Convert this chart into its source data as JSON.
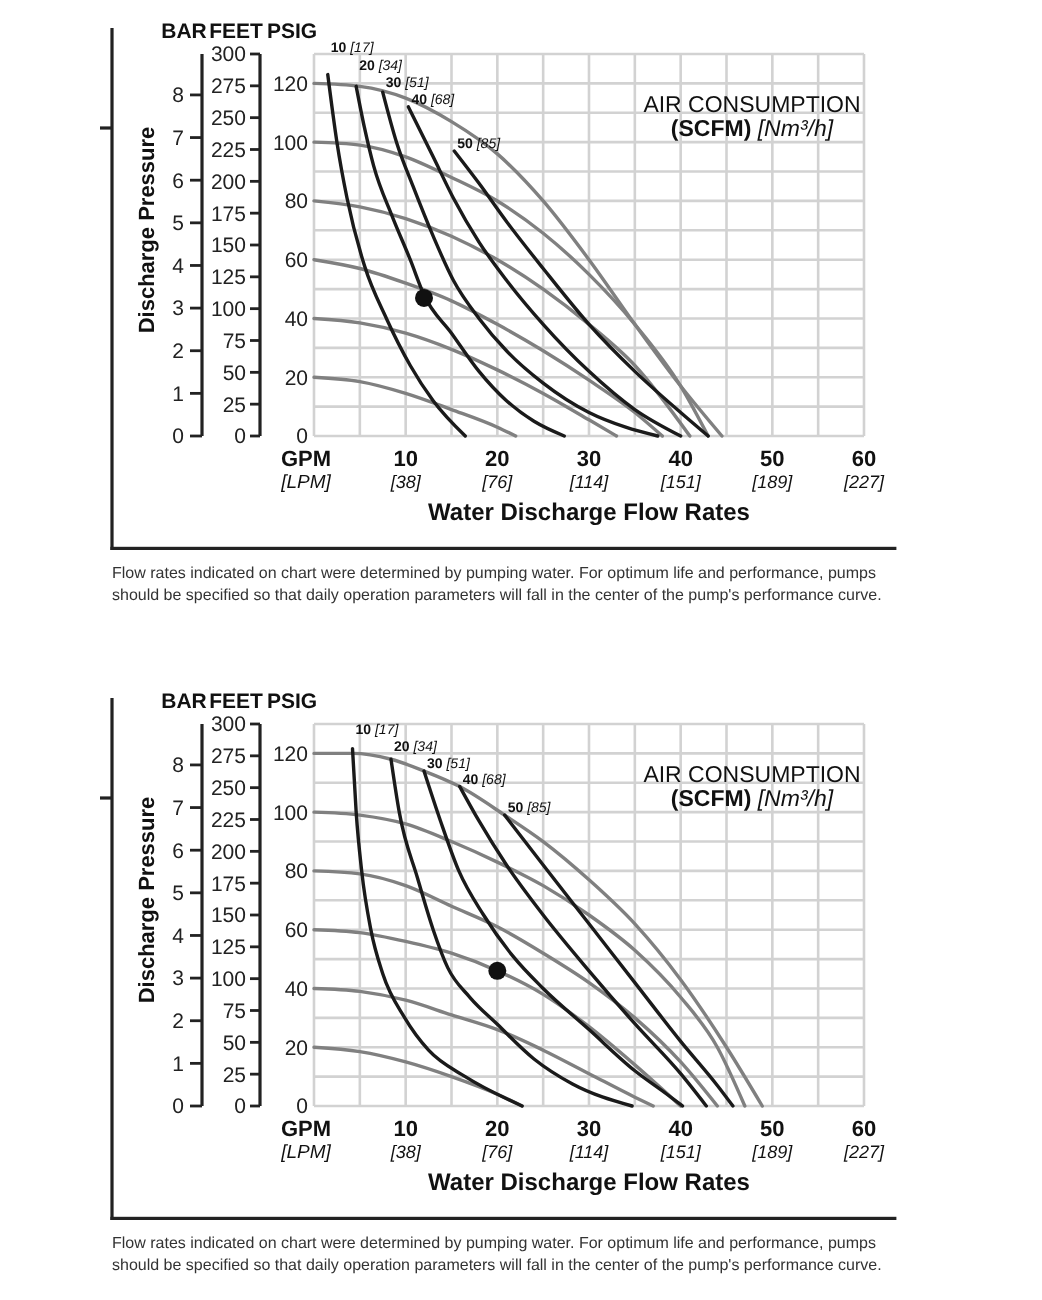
{
  "chart_data": [
    {
      "type": "line",
      "xlabel": "GPM",
      "x2label": "[LPM]",
      "ylabel": "PSIG",
      "y2label": "FEET",
      "y3label": "BAR",
      "annotations": [
        "Discharge Pressure",
        "Water Discharge Flow Rates",
        "AIR CONSUMPTION",
        "(SCFM) [Nm³/h]",
        "Flow rates indicated on chart were determined by pumping water. For optimum life and performance, pumps should be specified so that daily operation parameters will fall in the center of the pump's performance curve."
      ],
      "xlim": [
        0,
        60
      ],
      "xticks": [
        {
          "value": 0,
          "label": null
        },
        {
          "value": 5,
          "label": null
        },
        10,
        {
          "value": 15,
          "label": null
        },
        20,
        {
          "value": 25,
          "label": null
        },
        30,
        {
          "value": 35,
          "label": null
        },
        40,
        {
          "value": 45,
          "label": null
        },
        50,
        {
          "value": 55,
          "label": null
        },
        60
      ],
      "x2lim": [
        0,
        227.12
      ],
      "x2ticks": [
        {
          "value": 37.85,
          "label": "[38]"
        },
        {
          "value": 75.71,
          "label": "[76]"
        },
        {
          "value": 113.56,
          "label": "[114]"
        },
        {
          "value": 151.42,
          "label": "[151]"
        },
        {
          "value": 189.27,
          "label": "[189]"
        },
        {
          "value": 227.12,
          "label": "[227]"
        }
      ],
      "ylim": [
        0,
        130
      ],
      "yticks": [
        0,
        {
          "value": 10,
          "label": null
        },
        20,
        {
          "value": 30,
          "label": null
        },
        40,
        {
          "value": 50,
          "label": null
        },
        60,
        {
          "value": 70,
          "label": null
        },
        80,
        {
          "value": 90,
          "label": null
        },
        100,
        {
          "value": 110,
          "label": null
        },
        120,
        {
          "value": 130,
          "label": null
        }
      ],
      "y2lim": [
        0,
        300
      ],
      "y2ticks": [
        0,
        25,
        50,
        75,
        100,
        125,
        150,
        175,
        200,
        225,
        250,
        275,
        300
      ],
      "y3lim": [
        0,
        8.96
      ],
      "y3ticks": [
        0,
        1,
        2,
        3,
        4,
        5,
        6,
        7,
        8
      ],
      "grid": true,
      "series": [
        {
          "color": "#808080",
          "x": [
            0,
            5,
            10,
            15,
            20,
            25,
            30,
            35,
            40,
            44.5
          ],
          "values": [
            120,
            119,
            115,
            107,
            96,
            80,
            60,
            38,
            17,
            0
          ]
        },
        {
          "color": "#808080",
          "x": [
            0,
            5,
            10,
            15,
            20,
            25,
            30,
            35,
            40,
            43
          ],
          "values": [
            100,
            99,
            95,
            88,
            80,
            69,
            55,
            38,
            17,
            0
          ]
        },
        {
          "color": "#808080",
          "x": [
            0,
            5,
            10,
            15,
            20,
            25,
            30,
            35,
            41
          ],
          "values": [
            80,
            78,
            74,
            68,
            60,
            50,
            38,
            24,
            0
          ]
        },
        {
          "color": "#808080",
          "x": [
            0,
            5,
            10,
            15,
            20,
            25,
            30,
            35,
            38
          ],
          "values": [
            60,
            57,
            52,
            46,
            38,
            29,
            19,
            8,
            0
          ]
        },
        {
          "color": "#808080",
          "x": [
            0,
            5,
            10,
            15,
            20,
            25,
            30,
            33
          ],
          "values": [
            40,
            38.5,
            35,
            29.5,
            22.5,
            14.5,
            5.5,
            0
          ]
        },
        {
          "color": "#808080",
          "x": [
            0,
            5,
            10,
            15,
            20,
            22
          ],
          "values": [
            20,
            18.5,
            14.5,
            9,
            3,
            0
          ]
        },
        {
          "name": "10 [17]",
          "color": "#1a1a1a",
          "x": [
            1.5,
            2.5,
            3.6,
            5.5,
            7.9,
            10.5,
            13,
            16.5
          ],
          "values": [
            123,
            100,
            81,
            58,
            40,
            24,
            12,
            0
          ]
        },
        {
          "name": "20 [34]",
          "color": "#1a1a1a",
          "x": [
            4.6,
            5.5,
            6.5,
            8.5,
            10.5,
            12,
            15,
            18,
            21,
            24,
            27.3
          ],
          "values": [
            119,
            105,
            92,
            75,
            60,
            48,
            35,
            22,
            12,
            5,
            0
          ]
        },
        {
          "name": "30 [51]",
          "color": "#1a1a1a",
          "x": [
            7.5,
            9,
            10.8,
            13,
            15.2,
            18,
            21,
            25,
            30,
            34,
            37.5
          ],
          "values": [
            117,
            100,
            85,
            68,
            53,
            40,
            29,
            18,
            8,
            3,
            0
          ]
        },
        {
          "name": "40 [68]",
          "color": "#1a1a1a",
          "x": [
            10.3,
            13,
            15.2,
            18,
            21,
            25,
            30,
            35,
            40
          ],
          "values": [
            112,
            95,
            81,
            66,
            53,
            38,
            22,
            9,
            0
          ]
        },
        {
          "name": "50 [85]",
          "color": "#1a1a1a",
          "x": [
            15.3,
            18,
            21,
            25,
            30,
            35,
            40,
            43
          ],
          "values": [
            97,
            86,
            73,
            57,
            38,
            22,
            8,
            0
          ]
        },
        {
          "type": "scatter",
          "marker": "circle",
          "color": "#111111",
          "x": [
            12
          ],
          "values": [
            47
          ]
        }
      ]
    },
    {
      "type": "line",
      "xlabel": "GPM",
      "x2label": "[LPM]",
      "ylabel": "PSIG",
      "y2label": "FEET",
      "y3label": "BAR",
      "annotations": [
        "Discharge Pressure",
        "Water Discharge Flow Rates",
        "AIR CONSUMPTION",
        "(SCFM) [Nm³/h]",
        "Flow rates indicated on chart were determined by pumping water. For optimum life and performance, pumps should be specified so that daily operation parameters will fall in the center of the pump's performance curve."
      ],
      "xlim": [
        0,
        60
      ],
      "xticks": [
        {
          "value": 0,
          "label": null
        },
        {
          "value": 5,
          "label": null
        },
        10,
        {
          "value": 15,
          "label": null
        },
        20,
        {
          "value": 25,
          "label": null
        },
        30,
        {
          "value": 35,
          "label": null
        },
        40,
        {
          "value": 45,
          "label": null
        },
        50,
        {
          "value": 55,
          "label": null
        },
        60
      ],
      "x2lim": [
        0,
        227.12
      ],
      "x2ticks": [
        {
          "value": 37.85,
          "label": "[38]"
        },
        {
          "value": 75.71,
          "label": "[76]"
        },
        {
          "value": 113.56,
          "label": "[114]"
        },
        {
          "value": 151.42,
          "label": "[151]"
        },
        {
          "value": 189.27,
          "label": "[189]"
        },
        {
          "value": 227.12,
          "label": "[227]"
        }
      ],
      "ylim": [
        0,
        130
      ],
      "yticks": [
        0,
        {
          "value": 10,
          "label": null
        },
        20,
        {
          "value": 30,
          "label": null
        },
        40,
        {
          "value": 50,
          "label": null
        },
        60,
        {
          "value": 70,
          "label": null
        },
        80,
        {
          "value": 90,
          "label": null
        },
        100,
        {
          "value": 110,
          "label": null
        },
        120,
        {
          "value": 130,
          "label": null
        }
      ],
      "y2lim": [
        0,
        300
      ],
      "y2ticks": [
        0,
        25,
        50,
        75,
        100,
        125,
        150,
        175,
        200,
        225,
        250,
        275,
        300
      ],
      "y3lim": [
        0,
        8.96
      ],
      "y3ticks": [
        0,
        1,
        2,
        3,
        4,
        5,
        6,
        7,
        8
      ],
      "grid": true,
      "series": [
        {
          "color": "#808080",
          "x": [
            0,
            4.2,
            8.4,
            12,
            15.9,
            20.8,
            25,
            30,
            35,
            40,
            45,
            48.9
          ],
          "values": [
            120,
            120,
            118,
            114,
            108.7,
            99,
            90,
            77,
            62,
            43,
            20,
            0
          ]
        },
        {
          "color": "#808080",
          "x": [
            0,
            5,
            10,
            15,
            20,
            25,
            30,
            35,
            40,
            44,
            47
          ],
          "values": [
            100,
            99,
            96,
            90,
            83,
            75,
            65,
            53,
            37,
            20,
            0
          ]
        },
        {
          "color": "#808080",
          "x": [
            0,
            5,
            10,
            15,
            20,
            25,
            30,
            35,
            40,
            44
          ],
          "values": [
            80,
            79,
            75,
            68,
            61,
            52,
            42,
            30,
            15,
            0
          ]
        },
        {
          "color": "#808080",
          "x": [
            0,
            5,
            10,
            15,
            20,
            25,
            30,
            35,
            40
          ],
          "values": [
            60,
            59,
            56,
            52,
            46,
            38,
            27,
            14,
            0
          ]
        },
        {
          "color": "#808080",
          "x": [
            0,
            5,
            10,
            15,
            20,
            25,
            30,
            35,
            37
          ],
          "values": [
            40,
            39,
            36,
            31,
            26,
            19,
            11,
            3,
            0
          ]
        },
        {
          "color": "#808080",
          "x": [
            0,
            5,
            10,
            15,
            20,
            22.7
          ],
          "values": [
            20,
            18.5,
            15,
            10,
            4,
            0
          ]
        },
        {
          "name": "10 [17]",
          "color": "#1a1a1a",
          "x": [
            4.2,
            4.6,
            5.2,
            6.2,
            7.5,
            9.9,
            12.5,
            16.5,
            22.7
          ],
          "values": [
            121.6,
            100,
            80,
            60,
            45,
            30,
            19,
            10,
            0
          ]
        },
        {
          "name": "20 [34]",
          "color": "#1a1a1a",
          "x": [
            8.4,
            9.3,
            11.3,
            13,
            14.6,
            17,
            20,
            24,
            28.2,
            34.7
          ],
          "values": [
            118,
            100,
            77.5,
            60,
            47,
            37,
            27.8,
            16,
            7.5,
            0
          ]
        },
        {
          "name": "30 [51]",
          "color": "#1a1a1a",
          "x": [
            12,
            13.8,
            15.8,
            18.5,
            21.7,
            25,
            30,
            35,
            38.5,
            40.2
          ],
          "values": [
            114,
            97,
            80,
            65,
            51,
            40,
            26,
            12,
            4,
            0
          ]
        },
        {
          "name": "40 [68]",
          "color": "#1a1a1a",
          "x": [
            15.9,
            18,
            21,
            25,
            30,
            35,
            40,
            42.8
          ],
          "values": [
            108.7,
            97,
            82,
            65,
            46,
            28,
            11,
            0
          ]
        },
        {
          "name": "50 [85]",
          "color": "#1a1a1a",
          "x": [
            20.8,
            25,
            30,
            35,
            40,
            44,
            45.7
          ],
          "values": [
            99,
            82,
            62,
            42,
            22,
            7,
            0
          ]
        },
        {
          "type": "scatter",
          "marker": "circle",
          "color": "#111111",
          "x": [
            20
          ],
          "values": [
            46
          ]
        }
      ]
    }
  ]
}
